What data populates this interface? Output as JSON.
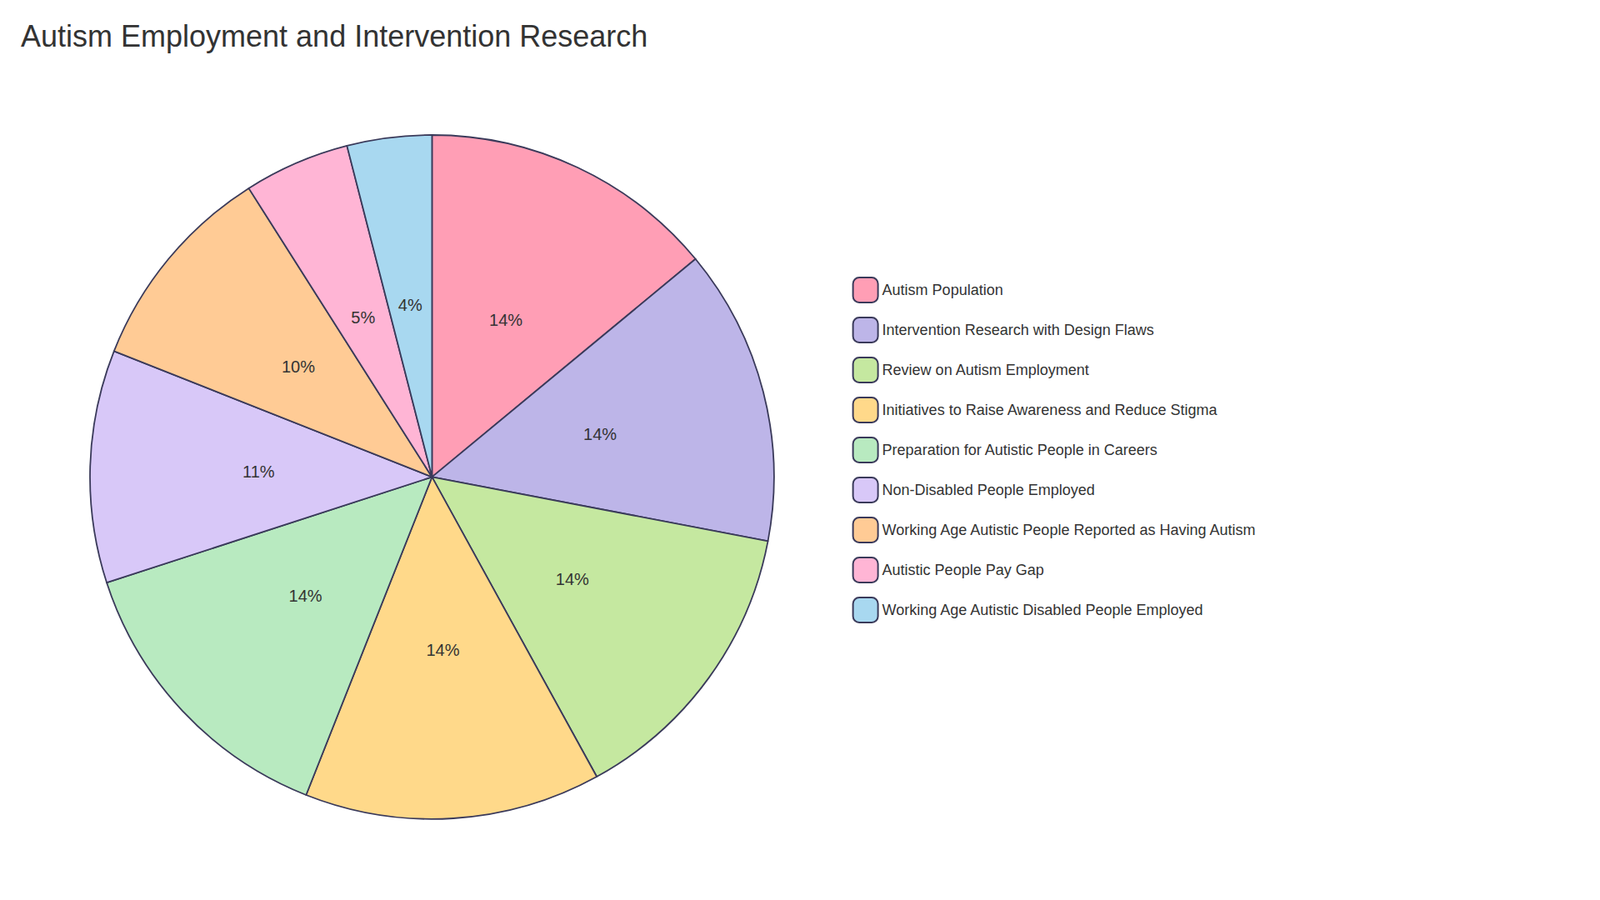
{
  "chart_data": {
    "type": "pie",
    "title": "Autism Employment and Intervention Research",
    "categories": [
      "Autism Population",
      "Intervention Research with Design Flaws",
      "Review on Autism Employment",
      "Initiatives to Raise Awareness and Reduce Stigma",
      "Preparation for Autistic People in Careers",
      "Non-Disabled People Employed",
      "Working Age Autistic People Reported as Having Autism",
      "Autistic People Pay Gap",
      "Working Age Autistic Disabled People Employed"
    ],
    "values": [
      14,
      14,
      14,
      14,
      14,
      11,
      10,
      5,
      4
    ],
    "value_labels": [
      "14%",
      "14%",
      "14%",
      "14%",
      "14%",
      "11%",
      "10%",
      "5%",
      "4%"
    ],
    "data_labels": true,
    "colors": [
      "#FF9EB5",
      "#BDB5E8",
      "#C5E8A0",
      "#FFD98A",
      "#B8EAC0",
      "#D8C8F8",
      "#FFCB95",
      "#FFB5D5",
      "#A8D8F0"
    ],
    "legend": "right"
  }
}
